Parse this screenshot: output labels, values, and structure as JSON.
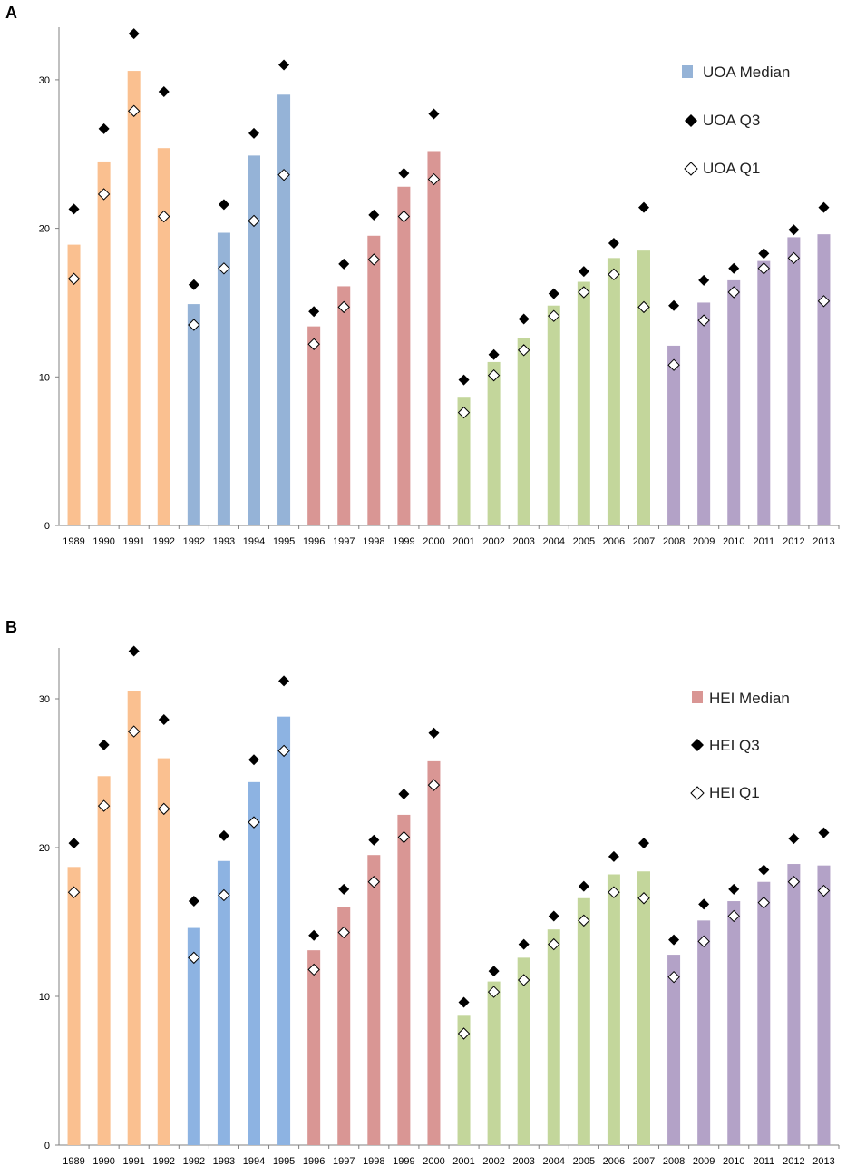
{
  "chart_data": [
    {
      "type": "bar",
      "panel_label": "A",
      "categories": [
        "1989",
        "1990",
        "1991",
        "1992",
        "1992",
        "1993",
        "1994",
        "1995",
        "1996",
        "1997",
        "1998",
        "1999",
        "2000",
        "2001",
        "2002",
        "2003",
        "2004",
        "2005",
        "2006",
        "2007",
        "2008",
        "2009",
        "2010",
        "2011",
        "2012",
        "2013"
      ],
      "groups": [
        0,
        0,
        0,
        0,
        1,
        1,
        1,
        1,
        2,
        2,
        2,
        2,
        2,
        3,
        3,
        3,
        3,
        3,
        3,
        3,
        4,
        4,
        4,
        4,
        4,
        4
      ],
      "series": [
        {
          "name": "UOA Median",
          "kind": "bar",
          "values": [
            18.9,
            24.5,
            30.6,
            25.4,
            14.9,
            19.7,
            24.9,
            29.0,
            13.4,
            16.1,
            19.5,
            22.8,
            25.2,
            8.6,
            11.0,
            12.6,
            14.8,
            16.4,
            18.0,
            18.5,
            12.1,
            15.0,
            16.5,
            17.8,
            19.4,
            19.6
          ]
        },
        {
          "name": "UOA Q3",
          "kind": "marker-filled-diamond",
          "values": [
            21.3,
            26.7,
            33.1,
            29.2,
            16.2,
            21.6,
            26.4,
            31.0,
            14.4,
            17.6,
            20.9,
            23.7,
            27.7,
            9.8,
            11.5,
            13.9,
            15.6,
            17.1,
            19.0,
            21.4,
            14.8,
            16.5,
            17.3,
            18.3,
            19.9,
            21.4
          ]
        },
        {
          "name": "UOA Q1",
          "kind": "marker-open-diamond",
          "values": [
            16.6,
            22.3,
            27.9,
            20.8,
            13.5,
            17.3,
            20.5,
            23.6,
            12.2,
            14.7,
            17.9,
            20.8,
            23.3,
            7.6,
            10.1,
            11.8,
            14.1,
            15.7,
            16.9,
            14.7,
            10.8,
            13.8,
            15.7,
            17.3,
            18.0,
            15.1
          ]
        }
      ],
      "yticks": [
        "0",
        "10",
        "20",
        "30"
      ],
      "ylim": [
        0,
        34
      ],
      "group_colors": [
        "#fac090",
        "#95b3d7",
        "#d99694",
        "#c3d69b",
        "#b3a2c7"
      ],
      "marker_colors": {
        "q3": "#000000",
        "q1": "#ffffff"
      },
      "legend": {
        "median": "UOA Median",
        "q3": "UOA Q3",
        "q1": "UOA Q1",
        "median_color": "#95b3d7",
        "position": "top-right"
      }
    },
    {
      "type": "bar",
      "panel_label": "B",
      "categories": [
        "1989",
        "1990",
        "1991",
        "1992",
        "1992",
        "1993",
        "1994",
        "1995",
        "1996",
        "1997",
        "1998",
        "1999",
        "2000",
        "2001",
        "2002",
        "2003",
        "2004",
        "2005",
        "2006",
        "2007",
        "2008",
        "2009",
        "2010",
        "2011",
        "2012",
        "2013"
      ],
      "groups": [
        0,
        0,
        0,
        0,
        1,
        1,
        1,
        1,
        2,
        2,
        2,
        2,
        2,
        3,
        3,
        3,
        3,
        3,
        3,
        3,
        4,
        4,
        4,
        4,
        4,
        4
      ],
      "series": [
        {
          "name": "HEI Median",
          "kind": "bar",
          "values": [
            18.7,
            24.8,
            30.5,
            26.0,
            14.6,
            19.1,
            24.4,
            28.8,
            13.1,
            16.0,
            19.5,
            22.2,
            25.8,
            8.7,
            11.0,
            12.6,
            14.5,
            16.6,
            18.2,
            18.4,
            12.8,
            15.1,
            16.4,
            17.7,
            18.9,
            18.8
          ]
        },
        {
          "name": "HEI Q3",
          "kind": "marker-filled-diamond",
          "values": [
            20.3,
            26.9,
            33.2,
            28.6,
            16.4,
            20.8,
            25.9,
            31.2,
            14.1,
            17.2,
            20.5,
            23.6,
            27.7,
            9.6,
            11.7,
            13.5,
            15.4,
            17.4,
            19.4,
            20.3,
            13.8,
            16.2,
            17.2,
            18.5,
            20.6,
            21.0
          ]
        },
        {
          "name": "HEI Q1",
          "kind": "marker-open-diamond",
          "values": [
            17.0,
            22.8,
            27.8,
            22.6,
            12.6,
            16.8,
            21.7,
            26.5,
            11.8,
            14.3,
            17.7,
            20.7,
            24.2,
            7.5,
            10.3,
            11.1,
            13.5,
            15.1,
            17.0,
            16.6,
            11.3,
            13.7,
            15.4,
            16.3,
            17.7,
            17.1
          ]
        }
      ],
      "yticks": [
        "0",
        "10",
        "20",
        "30"
      ],
      "ylim": [
        0,
        34
      ],
      "group_colors": [
        "#fac090",
        "#8db3e2",
        "#d99694",
        "#c3d69b",
        "#b3a2c7"
      ],
      "marker_colors": {
        "q3": "#000000",
        "q1": "#ffffff"
      },
      "legend": {
        "median": "HEI Median",
        "q3": "HEI Q3",
        "q1": "HEI Q1",
        "median_color": "#d99694",
        "position": "top-right"
      }
    }
  ]
}
